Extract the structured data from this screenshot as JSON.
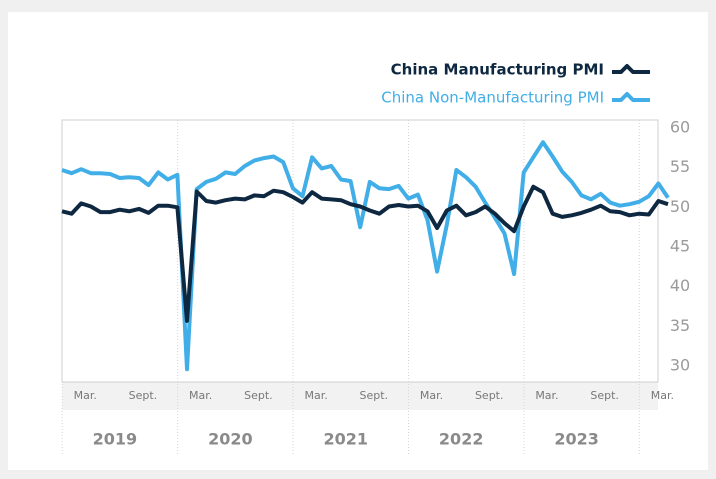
{
  "chart_data": {
    "type": "line",
    "categories": [
      null,
      null,
      "Mar.",
      null,
      null,
      null,
      null,
      null,
      "Sept.",
      null,
      null,
      null,
      null,
      null,
      "Mar.",
      null,
      null,
      null,
      null,
      null,
      "Sept.",
      null,
      null,
      null,
      null,
      null,
      "Mar.",
      null,
      null,
      null,
      null,
      null,
      "Sept.",
      null,
      null,
      null,
      null,
      null,
      "Mar.",
      null,
      null,
      null,
      null,
      null,
      "Sept.",
      null,
      null,
      null,
      null,
      null,
      "Mar.",
      null,
      null,
      null,
      null,
      null,
      "Sept.",
      null,
      null,
      null,
      null,
      null,
      "Mar.",
      null
    ],
    "year_labels": [
      "2019",
      "2020",
      "2021",
      "2022",
      "2023"
    ],
    "series": [
      {
        "name": "China Manufacturing PMI",
        "color": "#0e2841",
        "values": [
          49.5,
          49.2,
          50.5,
          50.1,
          49.4,
          49.4,
          49.7,
          49.5,
          49.8,
          49.3,
          50.2,
          50.2,
          50.0,
          35.7,
          52.0,
          50.8,
          50.6,
          50.9,
          51.1,
          51.0,
          51.5,
          51.4,
          52.1,
          51.9,
          51.3,
          50.6,
          51.9,
          51.1,
          51.0,
          50.9,
          50.4,
          50.1,
          49.6,
          49.2,
          50.1,
          50.3,
          50.1,
          50.2,
          49.5,
          47.4,
          49.6,
          50.2,
          49.0,
          49.4,
          50.1,
          49.2,
          48.0,
          47.0,
          50.1,
          52.6,
          51.9,
          49.2,
          48.8,
          49.0,
          49.3,
          49.7,
          50.2,
          49.5,
          49.4,
          49.0,
          49.2,
          49.1,
          50.8,
          50.4
        ]
      },
      {
        "name": "China Non-Manufacturing PMI",
        "color": "#41aee8",
        "values": [
          54.7,
          54.3,
          54.8,
          54.3,
          54.3,
          54.2,
          53.7,
          53.8,
          53.7,
          52.8,
          54.4,
          53.5,
          54.1,
          29.6,
          52.3,
          53.2,
          53.6,
          54.4,
          54.2,
          55.2,
          55.9,
          56.2,
          56.4,
          55.7,
          52.4,
          51.4,
          56.3,
          54.9,
          55.2,
          53.5,
          53.3,
          47.5,
          53.2,
          52.4,
          52.3,
          52.7,
          51.1,
          51.6,
          48.4,
          41.9,
          47.8,
          54.7,
          53.8,
          52.6,
          50.6,
          48.7,
          46.7,
          41.6,
          54.4,
          56.3,
          58.2,
          56.4,
          54.5,
          53.2,
          51.5,
          51.0,
          51.7,
          50.6,
          50.2,
          50.4,
          50.7,
          51.4,
          53.0,
          51.2
        ]
      }
    ],
    "ylim": [
      28,
      61
    ],
    "yticks": [
      30,
      35,
      40,
      45,
      50,
      55,
      60
    ],
    "grid": false
  }
}
